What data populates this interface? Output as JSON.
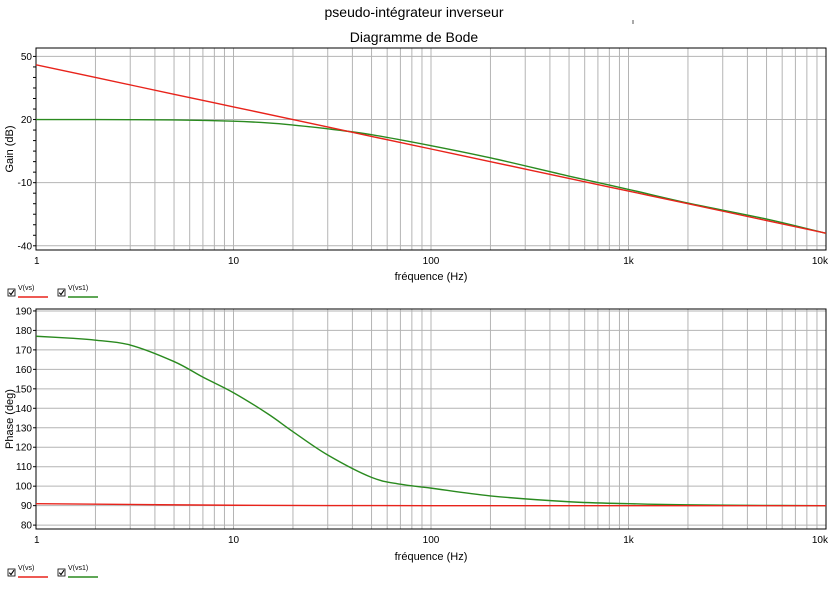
{
  "title": "pseudo-intégrateur inverseur",
  "subtitle": "Diagramme de Bode",
  "colors": {
    "series_vs": "#e8231b",
    "series_vs1": "#2a8a1f",
    "grid": "#b4b4b4",
    "frame": "#000000"
  },
  "chart_data": [
    {
      "type": "line",
      "title": "",
      "xlabel": "fréquence (Hz)",
      "ylabel": "Gain (dB)",
      "xscale": "log",
      "xlim": [
        1,
        10000
      ],
      "ylim": [
        -42,
        54
      ],
      "grid": true,
      "x_ticks": [
        "1",
        "10",
        "100",
        "1k",
        "10k"
      ],
      "y_ticks": [
        "50",
        "20",
        "-10",
        "-40"
      ],
      "y_tick_values": [
        50,
        20,
        -10,
        -40
      ],
      "legend": [
        "V(vs)",
        "V(vs1)"
      ],
      "legend_placement": "bottom-left",
      "series": [
        {
          "name": "V(vs)",
          "color": "#e8231b",
          "x": [
            1,
            2,
            5,
            10,
            20,
            50,
            100,
            200,
            500,
            1000,
            2000,
            5000,
            10000
          ],
          "y": [
            46,
            40,
            32,
            26,
            20,
            12,
            6,
            0,
            -8,
            -14,
            -20,
            -28,
            -34
          ]
        },
        {
          "name": "V(vs1)",
          "color": "#2a8a1f",
          "x": [
            1,
            2,
            5,
            10,
            15,
            20,
            30,
            50,
            100,
            200,
            500,
            1000,
            2000,
            5000,
            10000
          ],
          "y": [
            20,
            20,
            19.8,
            19.2,
            18.4,
            17.4,
            15.6,
            12.8,
            7.6,
            1.8,
            -6.9,
            -13.2,
            -19.7,
            -27.3,
            -34.1
          ]
        }
      ]
    },
    {
      "type": "line",
      "title": "",
      "xlabel": "fréquence (Hz)",
      "ylabel": "Phase (deg)",
      "xscale": "log",
      "xlim": [
        1,
        10000
      ],
      "ylim": [
        78,
        191
      ],
      "grid": true,
      "x_ticks": [
        "1",
        "10",
        "100",
        "1k",
        "10k"
      ],
      "y_ticks": [
        "190",
        "180",
        "170",
        "160",
        "150",
        "140",
        "130",
        "120",
        "110",
        "100",
        "90",
        "80"
      ],
      "y_tick_values": [
        190,
        180,
        170,
        160,
        150,
        140,
        130,
        120,
        110,
        100,
        90,
        80
      ],
      "legend": [
        "V(vs)",
        "V(vs1)"
      ],
      "legend_placement": "bottom-left",
      "series": [
        {
          "name": "V(vs)",
          "color": "#e8231b",
          "x": [
            1,
            10,
            100,
            1000,
            10000
          ],
          "y": [
            91,
            90.2,
            90,
            90,
            90
          ]
        },
        {
          "name": "V(vs1)",
          "color": "#2a8a1f",
          "x": [
            1,
            1.5,
            2,
            3,
            5,
            7,
            10,
            15,
            20,
            30,
            50,
            70,
            100,
            200,
            500,
            1000,
            2000,
            5000,
            10000
          ],
          "y": [
            177,
            176,
            175,
            172.5,
            164,
            156,
            148,
            137,
            128,
            116,
            104.5,
            101,
            99,
            95,
            92,
            91,
            90.4,
            90.1,
            90
          ]
        }
      ]
    }
  ]
}
